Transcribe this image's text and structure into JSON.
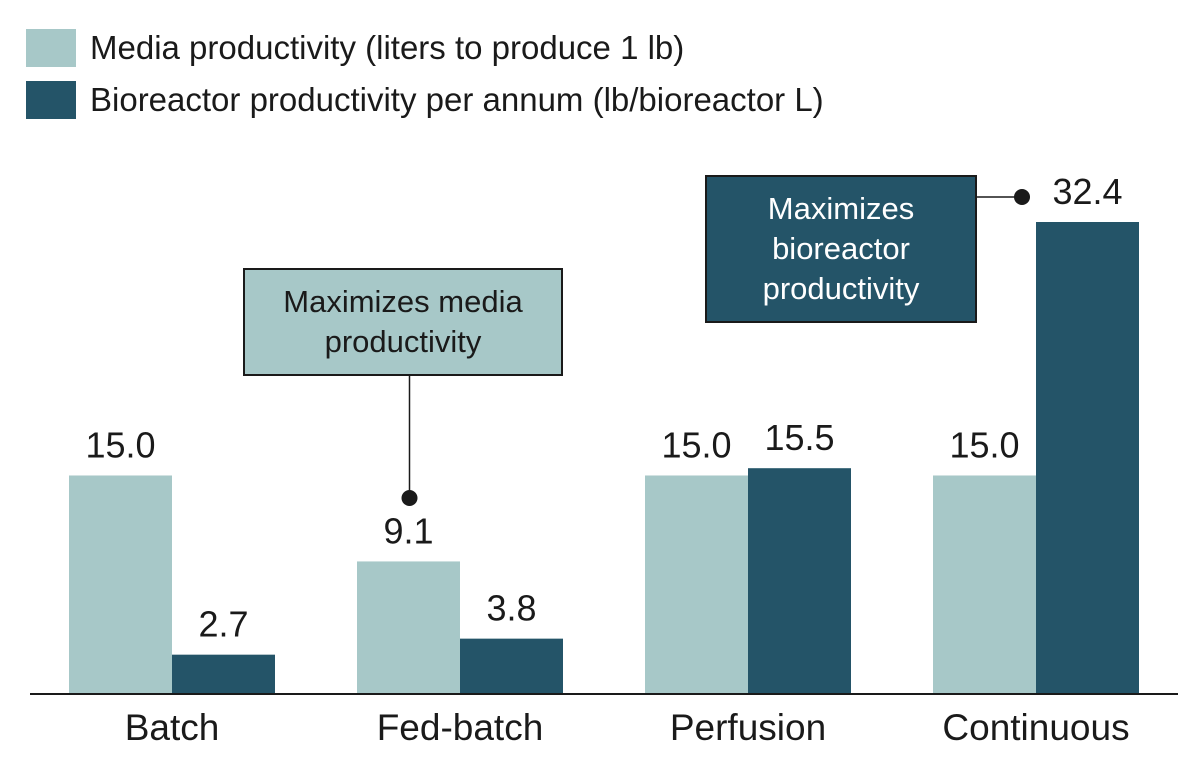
{
  "colors": {
    "media": "#a7c8c8",
    "bioreactor": "#245468",
    "text": "#1a1a1a",
    "axis": "#1a1a1a"
  },
  "legend": {
    "media_label": "Media productivity (liters to produce 1 lb)",
    "bioreactor_label": "Bioreactor productivity per annum (lb/bioreactor L)"
  },
  "callouts": {
    "media_text": "Maximizes media productivity",
    "bioreactor_text": "Maximizes bioreactor productivity"
  },
  "chart_data": {
    "type": "bar",
    "categories": [
      "Batch",
      "Fed-batch",
      "Perfusion",
      "Continuous"
    ],
    "series": [
      {
        "name": "Media productivity (liters to produce 1 lb)",
        "values": [
          15.0,
          9.1,
          15.0,
          15.0
        ],
        "labels": [
          "15.0",
          "9.1",
          "15.0",
          "15.0"
        ]
      },
      {
        "name": "Bioreactor productivity per annum (lb/bioreactor L)",
        "values": [
          2.7,
          3.8,
          15.5,
          32.4
        ],
        "labels": [
          "2.7",
          "3.8",
          "15.5",
          "32.4"
        ]
      }
    ],
    "title": "",
    "xlabel": "",
    "ylabel": "",
    "ylim": [
      0,
      34
    ],
    "grid": false,
    "legend_position": "top-left",
    "annotations": [
      {
        "text": "Maximizes media productivity",
        "target_category": "Fed-batch",
        "target_series": 0
      },
      {
        "text": "Maximizes bioreactor productivity",
        "target_category": "Continuous",
        "target_series": 1
      }
    ]
  }
}
